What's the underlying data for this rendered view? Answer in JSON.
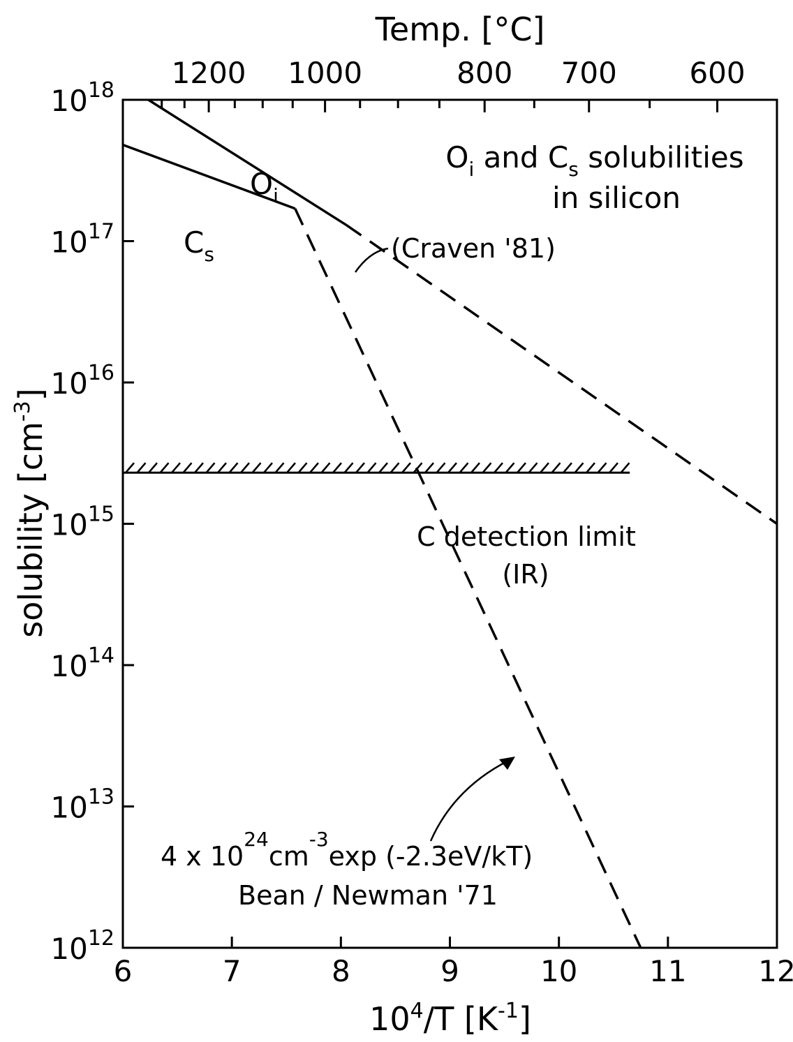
{
  "chart_data": {
    "type": "line",
    "y_scale": "log",
    "xlim": [
      6,
      12
    ],
    "ylim": [
      1000000000000.0,
      1e+18
    ],
    "grid": false,
    "x_ticks": [
      6,
      7,
      8,
      9,
      10,
      11,
      12
    ],
    "x_tick_labels": [
      "6",
      "7",
      "8",
      "9",
      "10",
      "11",
      "12"
    ],
    "y_ticks": [
      1000000000000.0,
      10000000000000.0,
      100000000000000.0,
      1000000000000000.0,
      1e+16,
      1e+17,
      1e+18
    ],
    "y_tick_labels": [
      {
        "base": "10",
        "exp": "12"
      },
      {
        "base": "10",
        "exp": "13"
      },
      {
        "base": "10",
        "exp": "14"
      },
      {
        "base": "10",
        "exp": "15"
      },
      {
        "base": "10",
        "exp": "16"
      },
      {
        "base": "10",
        "exp": "17"
      },
      {
        "base": "10",
        "exp": "18"
      }
    ],
    "xlabel": {
      "base": "10",
      "sup": "4",
      "rest": "/T [K",
      "unit_sup": "-1",
      "close": "]"
    },
    "ylabel": {
      "text": "solubility  [cm",
      "sup": "-3",
      "close": "]"
    },
    "top_axis": {
      "label": "Temp. [°C]",
      "ticks_celsius": [
        1200,
        1000,
        800,
        700,
        600
      ],
      "tick_labels": [
        "1200",
        "1000",
        "800",
        "700",
        "600"
      ]
    },
    "title": {
      "line1_a": "O",
      "line1_a_sub": "i",
      "line1_b": "  and  C",
      "line1_b_sub": "s",
      "line1_c": " solubilities",
      "line2": "in silicon"
    },
    "series": [
      {
        "name": "O",
        "name_sub": "i",
        "solid": [
          [
            6.0,
            1.3e+18
          ],
          [
            8.05,
            1.3e+17
          ]
        ],
        "dashed": [
          [
            8.05,
            1.3e+17
          ],
          [
            12.0,
            1000000000000000.0
          ]
        ]
      },
      {
        "name": "C",
        "name_sub": "s",
        "solid": [
          [
            6.0,
            4.8e+17
          ],
          [
            7.58,
            1.7e+17
          ]
        ],
        "dashed": [
          [
            7.58,
            1.7e+17
          ],
          [
            10.75,
            1000000000000.0
          ]
        ]
      }
    ],
    "detection_limit": {
      "value": 2300000000000000.0,
      "x_range": [
        6.0,
        10.65
      ],
      "label_line1": "C  detection limit",
      "label_line2": "(IR)"
    },
    "annotations": {
      "craven": "(Craven '81)",
      "formula": {
        "a": "4 x 10",
        "a_sup": "24",
        "b": "cm",
        "b_sup": "-3",
        "c": "exp (-2.3eV/kT)"
      },
      "reference": "Bean / Newman '71"
    }
  }
}
